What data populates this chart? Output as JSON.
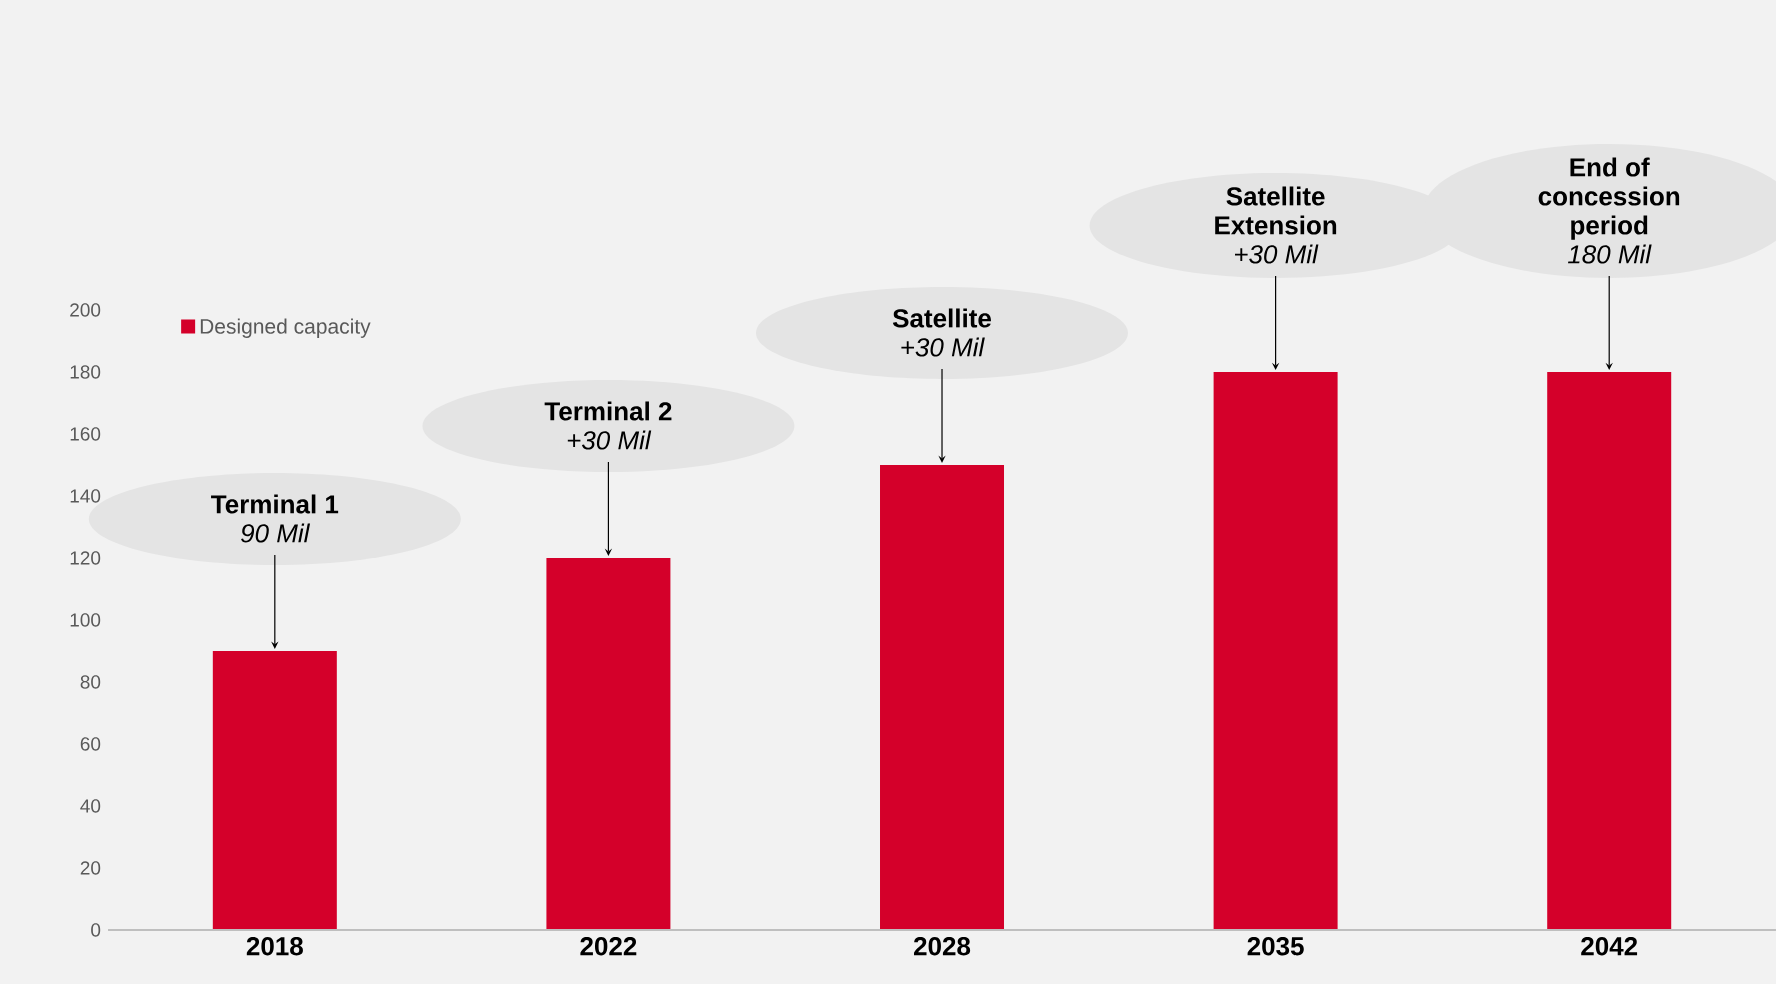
{
  "chart_data": {
    "type": "bar",
    "categories": [
      "2018",
      "2022",
      "2028",
      "2035",
      "2042"
    ],
    "series": [
      {
        "name": "Designed capacity",
        "color": "#d4002a",
        "values": [
          90,
          120,
          150,
          180,
          180
        ]
      }
    ],
    "ylim": [
      0,
      200
    ],
    "yticks": [
      0,
      20,
      40,
      60,
      80,
      100,
      120,
      140,
      160,
      180,
      200
    ],
    "grid": false,
    "legend": "top left",
    "annotations": [
      {
        "text": "**Terminal 1** *90 Mil*",
        "x": "2018",
        "y": 90
      },
      {
        "text": "**Terminal 2** *+30 Mil*",
        "x": "2022",
        "y": 120
      },
      {
        "text": "**Satellite** *+30 Mil*",
        "x": "2028",
        "y": 150
      },
      {
        "text": "**Satellite Extension** *+30 Mil*",
        "x": "2035",
        "y": 180
      },
      {
        "text": "**End of concession period** *180 Mil*",
        "x": "2042",
        "y": 180
      }
    ]
  }
}
